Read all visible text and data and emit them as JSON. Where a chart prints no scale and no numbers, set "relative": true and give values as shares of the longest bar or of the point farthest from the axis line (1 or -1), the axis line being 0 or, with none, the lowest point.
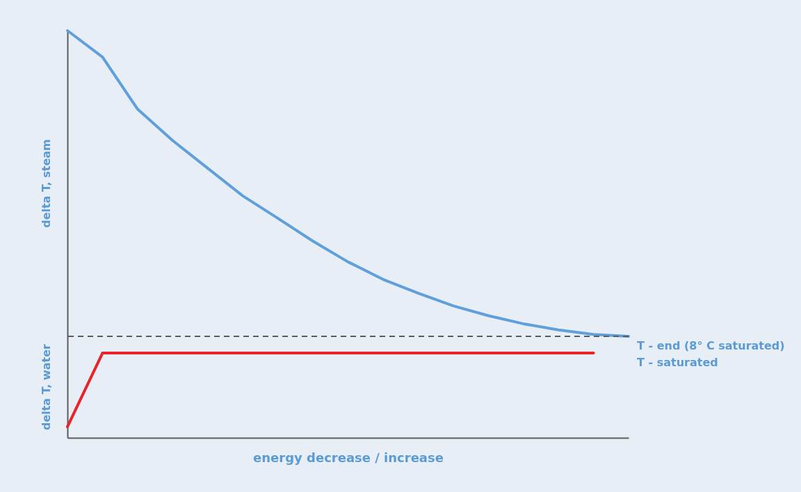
{
  "chart_data": {
    "type": "line",
    "relative": true,
    "legend": false,
    "line_style": "solid",
    "marker": "none",
    "xlabel": "energy decrease / increase",
    "categories": [
      null,
      null,
      null,
      null,
      null,
      null,
      null,
      null,
      null,
      null,
      null,
      null,
      null,
      null,
      null,
      null,
      null
    ],
    "series": [
      {
        "color": "#5fa0dc",
        "values": [
          1,
          0.935,
          0.807,
          0.73,
          0.662,
          0.594,
          0.539,
          0.483,
          0.432,
          0.389,
          0.355,
          0.324,
          0.3,
          0.28,
          0.265,
          0.254,
          0.249
        ]
      },
      {
        "color": "#e8232a",
        "values": [
          0.027,
          0.208,
          0.208,
          0.208,
          0.208,
          0.208,
          0.208,
          0.208,
          0.208,
          0.208,
          0.208,
          0.208,
          0.208,
          0.208,
          0.208,
          0.208,
          null
        ]
      }
    ],
    "ref_lines": [
      {
        "axis": "y",
        "value": 0.249,
        "color": "#5a5a5a",
        "line_style": "dashed"
      }
    ],
    "annotations": [
      "delta T, steam",
      "delta T, water",
      "T - end (8° C saturated)",
      "T - saturated"
    ]
  }
}
